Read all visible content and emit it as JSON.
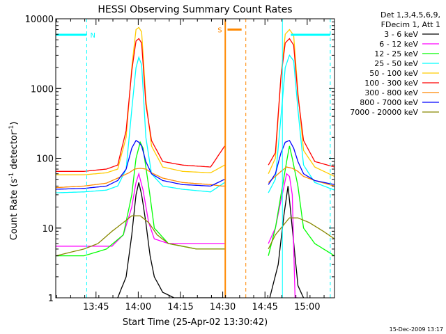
{
  "chart_data": {
    "type": "line",
    "title": "HESSI Observing Summary Count Rates",
    "xlabel": "Start Time (25-Apr-02 13:30:42)",
    "ylabel_main": "Count Rate (s",
    "ylabel_exp1": "-1",
    "ylabel_mid": " detector",
    "ylabel_exp2": "-1",
    "ylabel_end": ")",
    "footer": "15-Dec-2009 13:17",
    "x_unit": "minutes since 13:30:42",
    "xlim": [
      0,
      99
    ],
    "ylim": [
      1,
      10000
    ],
    "yscale": "log",
    "x_ticks": [
      {
        "t": 14.3,
        "label": "13:45"
      },
      {
        "t": 29.3,
        "label": "14:00"
      },
      {
        "t": 44.3,
        "label": "14:15"
      },
      {
        "t": 59.3,
        "label": "14:30"
      },
      {
        "t": 74.3,
        "label": "14:45"
      },
      {
        "t": 89.3,
        "label": "15:00"
      }
    ],
    "y_ticks": [
      {
        "v": 1,
        "label": "1"
      },
      {
        "v": 10,
        "label": "10"
      },
      {
        "v": 100,
        "label": "100"
      },
      {
        "v": 1000,
        "label": "1000"
      },
      {
        "v": 10000,
        "label": "10000"
      }
    ],
    "legend": {
      "header1": "Det 1,3,4,5,6,9,",
      "header2": "FDecim 1, Att 1",
      "placement": "right"
    },
    "gaps": [
      [
        60.2,
        75.5
      ]
    ],
    "series": [
      {
        "name": "3 - 6 keV",
        "color": "#000000",
        "points": [
          [
            22,
            1
          ],
          [
            25,
            2
          ],
          [
            27,
            8
          ],
          [
            28.5,
            30
          ],
          [
            29.5,
            45
          ],
          [
            30.5,
            30
          ],
          [
            32,
            12
          ],
          [
            33.5,
            4
          ],
          [
            35,
            2
          ],
          [
            38,
            1.2
          ],
          [
            42,
            1
          ],
          [
            55,
            1
          ],
          [
            60,
            1
          ],
          [
            76,
            1
          ],
          [
            79,
            3
          ],
          [
            81,
            15
          ],
          [
            82.5,
            40
          ],
          [
            84,
            10
          ],
          [
            86,
            1.5
          ],
          [
            88,
            1
          ]
        ]
      },
      {
        "name": "6 - 12 keV",
        "color": "#ff00ff",
        "points": [
          [
            0,
            5.5
          ],
          [
            14,
            5.5
          ],
          [
            20,
            5.5
          ],
          [
            24,
            8
          ],
          [
            27,
            20
          ],
          [
            28.5,
            45
          ],
          [
            29.5,
            60
          ],
          [
            31,
            35
          ],
          [
            33,
            12
          ],
          [
            35,
            7
          ],
          [
            40,
            6
          ],
          [
            50,
            6
          ],
          [
            60,
            6
          ],
          [
            75.5,
            6
          ],
          [
            78,
            10
          ],
          [
            80,
            25
          ],
          [
            82,
            60
          ],
          [
            83,
            55
          ],
          [
            84,
            30
          ],
          [
            85,
            1
          ],
          [
            86,
            1
          ]
        ]
      },
      {
        "name": "12 - 25 keV",
        "color": "#00ff00",
        "points": [
          [
            0,
            4
          ],
          [
            10,
            4
          ],
          [
            18,
            5
          ],
          [
            24,
            8
          ],
          [
            27,
            30
          ],
          [
            28.5,
            100
          ],
          [
            30,
            170
          ],
          [
            31,
            140
          ],
          [
            33,
            40
          ],
          [
            35,
            10
          ],
          [
            40,
            6
          ],
          [
            50,
            5
          ],
          [
            60,
            5
          ],
          [
            75.5,
            4
          ],
          [
            78,
            10
          ],
          [
            80,
            30
          ],
          [
            82,
            90
          ],
          [
            83,
            150
          ],
          [
            84,
            100
          ],
          [
            86,
            40
          ],
          [
            88,
            10
          ],
          [
            92,
            6
          ],
          [
            99,
            4
          ]
        ]
      },
      {
        "name": "25 - 50 keV",
        "color": "#00ffff",
        "points": [
          [
            0,
            32
          ],
          [
            10,
            33
          ],
          [
            18,
            35
          ],
          [
            22,
            40
          ],
          [
            25,
            70
          ],
          [
            27,
            500
          ],
          [
            28.5,
            2000
          ],
          [
            29.5,
            2800
          ],
          [
            30.5,
            2200
          ],
          [
            32,
            200
          ],
          [
            34,
            60
          ],
          [
            38,
            40
          ],
          [
            45,
            36
          ],
          [
            55,
            33
          ],
          [
            60,
            45
          ],
          [
            75.5,
            32
          ],
          [
            78,
            50
          ],
          [
            80,
            400
          ],
          [
            81.5,
            2000
          ],
          [
            83,
            3000
          ],
          [
            84.5,
            2500
          ],
          [
            86,
            500
          ],
          [
            88,
            80
          ],
          [
            92,
            45
          ],
          [
            99,
            35
          ]
        ]
      },
      {
        "name": "50 - 100 keV",
        "color": "#ffcc00",
        "points": [
          [
            0,
            58
          ],
          [
            10,
            58
          ],
          [
            18,
            62
          ],
          [
            22,
            70
          ],
          [
            25,
            200
          ],
          [
            27,
            2000
          ],
          [
            28.5,
            7000
          ],
          [
            29.5,
            7500
          ],
          [
            30.5,
            6500
          ],
          [
            32,
            700
          ],
          [
            34,
            150
          ],
          [
            38,
            75
          ],
          [
            45,
            65
          ],
          [
            55,
            62
          ],
          [
            60,
            80
          ],
          [
            75.5,
            60
          ],
          [
            78,
            100
          ],
          [
            80,
            1500
          ],
          [
            81.5,
            6000
          ],
          [
            83,
            7000
          ],
          [
            84.5,
            5800
          ],
          [
            86,
            900
          ],
          [
            88,
            130
          ],
          [
            92,
            75
          ],
          [
            99,
            55
          ]
        ]
      },
      {
        "name": "100 - 300 keV",
        "color": "#ff0000",
        "points": [
          [
            0,
            65
          ],
          [
            10,
            65
          ],
          [
            18,
            70
          ],
          [
            22,
            80
          ],
          [
            25,
            250
          ],
          [
            27,
            1800
          ],
          [
            28.5,
            4800
          ],
          [
            29.5,
            5200
          ],
          [
            30.5,
            4500
          ],
          [
            32,
            600
          ],
          [
            34,
            180
          ],
          [
            38,
            90
          ],
          [
            45,
            80
          ],
          [
            55,
            75
          ],
          [
            60,
            150
          ],
          [
            75.5,
            80
          ],
          [
            78,
            120
          ],
          [
            80,
            1500
          ],
          [
            81.5,
            4500
          ],
          [
            83,
            5200
          ],
          [
            84.5,
            4200
          ],
          [
            86,
            800
          ],
          [
            88,
            180
          ],
          [
            92,
            90
          ],
          [
            99,
            75
          ]
        ]
      },
      {
        "name": "300 - 800 keV",
        "color": "#ff8800",
        "points": [
          [
            0,
            38
          ],
          [
            10,
            40
          ],
          [
            18,
            44
          ],
          [
            22,
            52
          ],
          [
            26,
            62
          ],
          [
            28,
            70
          ],
          [
            30,
            72
          ],
          [
            32,
            70
          ],
          [
            34,
            62
          ],
          [
            38,
            52
          ],
          [
            45,
            45
          ],
          [
            55,
            42
          ],
          [
            59,
            40
          ],
          [
            60,
            40
          ],
          [
            75.5,
            45
          ],
          [
            78,
            55
          ],
          [
            80,
            65
          ],
          [
            82,
            75
          ],
          [
            84,
            72
          ],
          [
            86,
            65
          ],
          [
            88,
            55
          ],
          [
            92,
            48
          ],
          [
            99,
            40
          ]
        ]
      },
      {
        "name": "800 - 7000 keV",
        "color": "#0000ff",
        "points": [
          [
            0,
            36
          ],
          [
            10,
            37
          ],
          [
            18,
            40
          ],
          [
            22,
            48
          ],
          [
            25,
            70
          ],
          [
            27,
            140
          ],
          [
            28.5,
            180
          ],
          [
            29.5,
            170
          ],
          [
            30.5,
            150
          ],
          [
            32,
            90
          ],
          [
            34,
            60
          ],
          [
            38,
            48
          ],
          [
            45,
            42
          ],
          [
            55,
            40
          ],
          [
            60,
            50
          ],
          [
            75.5,
            42
          ],
          [
            78,
            60
          ],
          [
            80,
            120
          ],
          [
            81.5,
            170
          ],
          [
            83,
            180
          ],
          [
            84.5,
            140
          ],
          [
            86,
            90
          ],
          [
            88,
            60
          ],
          [
            92,
            48
          ],
          [
            99,
            42
          ]
        ]
      },
      {
        "name": "7000 - 20000 keV",
        "color": "#888800",
        "points": [
          [
            0,
            4
          ],
          [
            10,
            5
          ],
          [
            15,
            6
          ],
          [
            20,
            9
          ],
          [
            24,
            12
          ],
          [
            27,
            15
          ],
          [
            30,
            15
          ],
          [
            33,
            12
          ],
          [
            36,
            8
          ],
          [
            40,
            6
          ],
          [
            45,
            5.5
          ],
          [
            50,
            5
          ],
          [
            55,
            5
          ],
          [
            60,
            5
          ],
          [
            75.5,
            5
          ],
          [
            78,
            8
          ],
          [
            80,
            10
          ],
          [
            83,
            14
          ],
          [
            86,
            14
          ],
          [
            90,
            12
          ],
          [
            95,
            9
          ],
          [
            99,
            7
          ]
        ]
      }
    ],
    "overlays": {
      "n_label": "N",
      "s_label": "S",
      "n_bands": [
        {
          "x0": 0,
          "x1": 11,
          "y": 5900
        },
        {
          "x0": 83.5,
          "x1": 97.5,
          "y": 5900
        }
      ],
      "s_band": {
        "x0": 61,
        "x1": 66,
        "y": 7000
      },
      "vlines_cyan": [
        0,
        11,
        80.5,
        97.5
      ],
      "vlines_orange": [
        60.2,
        67.5
      ]
    }
  }
}
